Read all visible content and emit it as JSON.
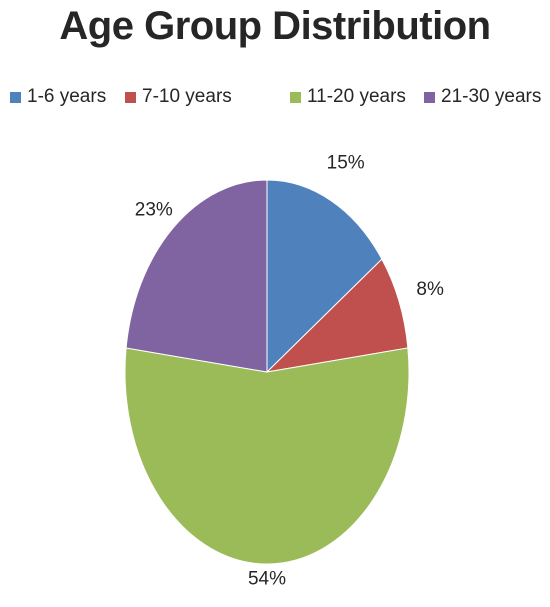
{
  "chart_data": {
    "type": "pie",
    "title": "Age Group Distribution",
    "legend_position": "top",
    "categories": [
      "1-6 years",
      "7-10 years",
      "11-20 years",
      "21-30 years"
    ],
    "values": [
      15,
      8,
      54,
      23
    ],
    "value_labels": [
      "15%",
      "8%",
      "54%",
      "23%"
    ],
    "colors": [
      "#4F81BD",
      "#C0504D",
      "#9BBB59",
      "#8064A2"
    ]
  }
}
